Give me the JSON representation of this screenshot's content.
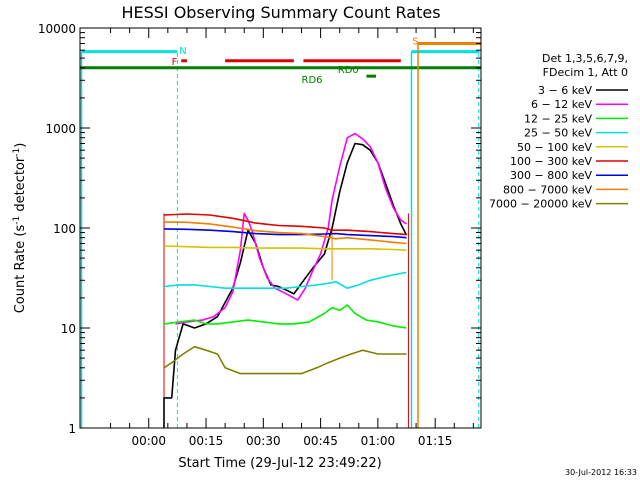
{
  "title": "HESSI Observing Summary Count Rates",
  "footer_date": "30-Jul-2012 16:33",
  "chart_data": {
    "type": "line",
    "title": "HESSI Observing Summary Count Rates",
    "xlabel": "Start Time (29-Jul-12 23:49:22)",
    "ylabel": "Count Rate (s⁻¹ detector⁻¹)",
    "ylabel_main": "Count Rate (s",
    "ylabel_mid": " detector",
    "ylabel_end": ")",
    "ylabel_sup": "-1",
    "yscale": "log",
    "ylim": [
      1,
      10000
    ],
    "xlim_minutes": [
      -18,
      87
    ],
    "x_units": "minutes after 00:00",
    "xticks": [
      {
        "m": 0,
        "label": "00:00"
      },
      {
        "m": 15,
        "label": "00:15"
      },
      {
        "m": 30,
        "label": "00:30"
      },
      {
        "m": 45,
        "label": "00:45"
      },
      {
        "m": 60,
        "label": "01:00"
      },
      {
        "m": 75,
        "label": "01:15"
      }
    ],
    "yticks": [
      {
        "v": 1,
        "label": "1"
      },
      {
        "v": 10,
        "label": "10"
      },
      {
        "v": 100,
        "label": "100"
      },
      {
        "v": 1000,
        "label": "1000"
      },
      {
        "v": 10000,
        "label": "10000"
      }
    ],
    "legend": {
      "placement": "right",
      "header": [
        "Det 1,3,5,6,7,9,",
        "FDecim 1, Att 0"
      ],
      "entries": [
        {
          "label": "3 − 6 keV",
          "color": "#000000"
        },
        {
          "label": "6 − 12 keV",
          "color": "#ff00ff"
        },
        {
          "label": "12 − 25 keV",
          "color": "#00ee00"
        },
        {
          "label": "25 − 50 keV",
          "color": "#00e0e0"
        },
        {
          "label": "50 − 100 keV",
          "color": "#d4c400"
        },
        {
          "label": "100 − 300 keV",
          "color": "#e00000"
        },
        {
          "label": "300 − 800 keV",
          "color": "#0000e0"
        },
        {
          "label": "800 − 7000 keV",
          "color": "#f08000"
        },
        {
          "label": "7000 − 20000 keV",
          "color": "#808000"
        }
      ]
    },
    "series": [
      {
        "name": "3 - 6 keV",
        "color": "#000000",
        "points": [
          [
            4,
            1
          ],
          [
            4,
            2
          ],
          [
            6,
            2
          ],
          [
            7,
            6
          ],
          [
            9,
            11
          ],
          [
            12,
            10
          ],
          [
            15,
            11
          ],
          [
            18,
            13
          ],
          [
            20,
            18
          ],
          [
            22,
            25
          ],
          [
            24,
            45
          ],
          [
            26,
            95
          ],
          [
            28,
            70
          ],
          [
            30,
            40
          ],
          [
            32,
            27
          ],
          [
            34,
            26
          ],
          [
            36,
            24
          ],
          [
            38,
            22
          ],
          [
            40,
            28
          ],
          [
            43,
            40
          ],
          [
            46,
            55
          ],
          [
            48,
            100
          ],
          [
            50,
            230
          ],
          [
            52,
            450
          ],
          [
            54,
            700
          ],
          [
            56,
            680
          ],
          [
            58,
            600
          ],
          [
            60,
            450
          ],
          [
            62,
            280
          ],
          [
            64,
            170
          ],
          [
            66,
            110
          ],
          [
            67.5,
            85
          ]
        ]
      },
      {
        "name": "6 - 12 keV",
        "color": "#ff00ff",
        "points": [
          [
            7,
            11
          ],
          [
            10,
            11.5
          ],
          [
            14,
            12
          ],
          [
            17,
            13
          ],
          [
            20,
            16
          ],
          [
            22,
            23
          ],
          [
            24,
            60
          ],
          [
            25,
            140
          ],
          [
            26,
            120
          ],
          [
            27,
            95
          ],
          [
            29,
            50
          ],
          [
            31,
            32
          ],
          [
            33,
            25
          ],
          [
            35,
            23
          ],
          [
            37,
            21
          ],
          [
            39,
            19
          ],
          [
            41,
            25
          ],
          [
            43,
            38
          ],
          [
            45,
            55
          ],
          [
            47,
            100
          ],
          [
            48,
            190
          ],
          [
            50,
            410
          ],
          [
            52,
            800
          ],
          [
            54,
            880
          ],
          [
            56,
            780
          ],
          [
            58,
            650
          ],
          [
            60,
            450
          ],
          [
            62,
            250
          ],
          [
            64,
            160
          ],
          [
            66,
            120
          ],
          [
            67.5,
            110
          ]
        ]
      },
      {
        "name": "12 - 25 keV",
        "color": "#00ee00",
        "points": [
          [
            4,
            11
          ],
          [
            8,
            11.5
          ],
          [
            12,
            12
          ],
          [
            15,
            11
          ],
          [
            18,
            11
          ],
          [
            22,
            11.5
          ],
          [
            26,
            12
          ],
          [
            30,
            11.5
          ],
          [
            34,
            11
          ],
          [
            38,
            11
          ],
          [
            42,
            11.5
          ],
          [
            46,
            14
          ],
          [
            48,
            16
          ],
          [
            50,
            15
          ],
          [
            52,
            17
          ],
          [
            54,
            14
          ],
          [
            57,
            12
          ],
          [
            60,
            11.5
          ],
          [
            64,
            10.5
          ],
          [
            67.5,
            10
          ]
        ]
      },
      {
        "name": "25 - 50 keV",
        "color": "#00e0e0",
        "points": [
          [
            4,
            26
          ],
          [
            8,
            27
          ],
          [
            12,
            27
          ],
          [
            16,
            26
          ],
          [
            20,
            25
          ],
          [
            24,
            25
          ],
          [
            28,
            25
          ],
          [
            32,
            25
          ],
          [
            36,
            25
          ],
          [
            40,
            26
          ],
          [
            44,
            27
          ],
          [
            47,
            28
          ],
          [
            49,
            29
          ],
          [
            52,
            25
          ],
          [
            55,
            27
          ],
          [
            58,
            30
          ],
          [
            61,
            32
          ],
          [
            64,
            34
          ],
          [
            67.5,
            36
          ]
        ]
      },
      {
        "name": "50 - 100 keV",
        "color": "#d4c400",
        "points": [
          [
            4,
            66
          ],
          [
            10,
            65
          ],
          [
            16,
            64
          ],
          [
            22,
            64
          ],
          [
            28,
            63
          ],
          [
            34,
            63
          ],
          [
            40,
            63
          ],
          [
            46,
            62
          ],
          [
            52,
            62
          ],
          [
            58,
            62
          ],
          [
            64,
            61
          ],
          [
            67.5,
            60
          ]
        ]
      },
      {
        "name": "100 - 300 keV",
        "color": "#e00000",
        "points": [
          [
            4,
            135
          ],
          [
            10,
            138
          ],
          [
            16,
            135
          ],
          [
            22,
            125
          ],
          [
            28,
            112
          ],
          [
            34,
            106
          ],
          [
            40,
            104
          ],
          [
            46,
            100
          ],
          [
            48,
            95
          ],
          [
            52,
            95
          ],
          [
            58,
            92
          ],
          [
            64,
            88
          ],
          [
            67.5,
            86
          ]
        ]
      },
      {
        "name": "300 - 800 keV",
        "color": "#0000e0",
        "points": [
          [
            4,
            98
          ],
          [
            10,
            97
          ],
          [
            16,
            95
          ],
          [
            22,
            92
          ],
          [
            28,
            88
          ],
          [
            34,
            86
          ],
          [
            40,
            86
          ],
          [
            46,
            87
          ],
          [
            49,
            88
          ],
          [
            52,
            86
          ],
          [
            58,
            84
          ],
          [
            64,
            82
          ],
          [
            67.5,
            80
          ]
        ]
      },
      {
        "name": "800 - 7000 keV",
        "color": "#f08000",
        "points": [
          [
            4,
            115
          ],
          [
            10,
            114
          ],
          [
            16,
            110
          ],
          [
            22,
            102
          ],
          [
            28,
            94
          ],
          [
            34,
            90
          ],
          [
            40,
            88
          ],
          [
            46,
            82
          ],
          [
            49,
            78
          ],
          [
            52,
            80
          ],
          [
            58,
            76
          ],
          [
            64,
            72
          ],
          [
            67.5,
            70
          ]
        ]
      },
      {
        "name": "7000 - 20000 keV",
        "color": "#808000",
        "points": [
          [
            4,
            4
          ],
          [
            6,
            4.5
          ],
          [
            9,
            5.5
          ],
          [
            12,
            6.5
          ],
          [
            15,
            6
          ],
          [
            18,
            5.5
          ],
          [
            20,
            4
          ],
          [
            24,
            3.5
          ],
          [
            28,
            3.5
          ],
          [
            32,
            3.5
          ],
          [
            36,
            3.5
          ],
          [
            40,
            3.5
          ],
          [
            44,
            4
          ],
          [
            47,
            4.5
          ],
          [
            50,
            5
          ],
          [
            53,
            5.5
          ],
          [
            56,
            6
          ],
          [
            60,
            5.5
          ],
          [
            64,
            5.5
          ],
          [
            67.5,
            5.5
          ]
        ]
      }
    ],
    "annotations": [
      {
        "label": "N",
        "color": "#00e0e0",
        "m": 8,
        "v": 6000
      },
      {
        "label": "F",
        "color": "#e00000",
        "m": 6,
        "v": 4700
      },
      {
        "label": "RD0",
        "color": "#008000",
        "m": 49.5,
        "v": 3900
      },
      {
        "label": "RD6",
        "color": "#008000",
        "m": 40,
        "v": 3100
      },
      {
        "label": "S",
        "color": "#f08000",
        "m": 69,
        "v": 7500
      }
    ]
  }
}
